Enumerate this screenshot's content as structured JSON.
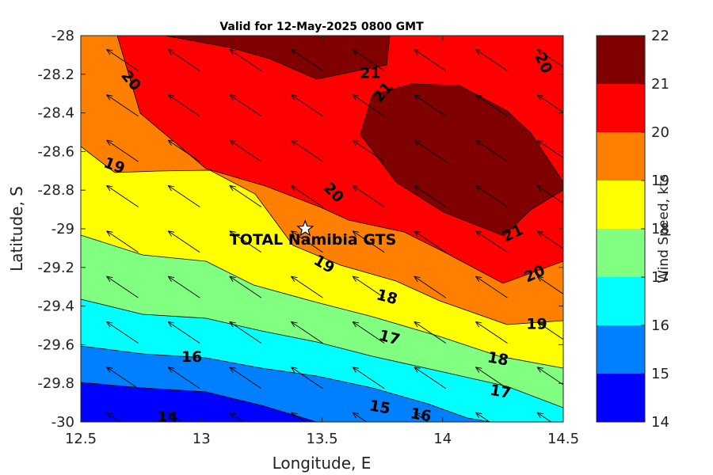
{
  "chart_data": {
    "type": "heatmap",
    "title": "Valid for 12-May-2025 0800 GMT",
    "xlabel": "Longitude, E",
    "ylabel": "Latitude, S",
    "xlim": [
      12.5,
      14.5
    ],
    "ylim": [
      -30,
      -28
    ],
    "xticks": [
      "12.5",
      "13",
      "13.5",
      "14",
      "14.5"
    ],
    "yticks": [
      "-28",
      "-28.2",
      "-28.4",
      "-28.6",
      "-28.8",
      "-29",
      "-29.2",
      "-29.4",
      "-29.6",
      "-29.8",
      "-30"
    ],
    "colorbar": {
      "label": "Wind Speed, kts",
      "ticks": [
        "22",
        "21",
        "20",
        "19",
        "18",
        "17",
        "16",
        "15",
        "14"
      ],
      "levels": [
        14,
        15,
        16,
        17,
        18,
        19,
        20,
        21,
        22
      ],
      "colors": [
        "#0000ff",
        "#0080ff",
        "#00ffff",
        "#80ff80",
        "#ffff00",
        "#ff8000",
        "#ff0000",
        "#800000"
      ]
    },
    "contour_labels": [
      {
        "text": "20",
        "x": 12.71,
        "y": -28.23,
        "angle": 50
      },
      {
        "text": "21",
        "x": 13.7,
        "y": -28.19,
        "angle": 0
      },
      {
        "text": "21",
        "x": 13.75,
        "y": -28.29,
        "angle": -50
      },
      {
        "text": "20",
        "x": 14.42,
        "y": -28.14,
        "angle": 65
      },
      {
        "text": "19",
        "x": 12.64,
        "y": -28.67,
        "angle": 20
      },
      {
        "text": "20",
        "x": 13.55,
        "y": -28.81,
        "angle": 45
      },
      {
        "text": "21",
        "x": 14.29,
        "y": -29.02,
        "angle": -25
      },
      {
        "text": "19",
        "x": 13.51,
        "y": -29.18,
        "angle": 30
      },
      {
        "text": "20",
        "x": 14.38,
        "y": -29.23,
        "angle": -25
      },
      {
        "text": "18",
        "x": 13.77,
        "y": -29.35,
        "angle": 15
      },
      {
        "text": "19",
        "x": 14.39,
        "y": -29.49,
        "angle": 0
      },
      {
        "text": "17",
        "x": 13.78,
        "y": -29.56,
        "angle": 15
      },
      {
        "text": "16",
        "x": 12.96,
        "y": -29.66,
        "angle": 0
      },
      {
        "text": "18",
        "x": 14.23,
        "y": -29.67,
        "angle": 10
      },
      {
        "text": "17",
        "x": 14.24,
        "y": -29.84,
        "angle": 10
      },
      {
        "text": "15",
        "x": 13.74,
        "y": -29.92,
        "angle": 10
      },
      {
        "text": "16",
        "x": 13.91,
        "y": -29.96,
        "angle": 10
      },
      {
        "text": "14",
        "x": 12.86,
        "y": -29.97,
        "angle": 0
      }
    ],
    "site": {
      "name": "TOTAL Namibia GTS",
      "lon": 13.43,
      "lat": -29.0
    },
    "wind_direction": "arrows pointing toward the northwest across the whole domain",
    "grid": false
  },
  "colors": {
    "band_14_15": "#0000ff",
    "band_15_16": "#0080ff",
    "band_16_17": "#00ffff",
    "band_17_18": "#80ff80",
    "band_18_19": "#ffff00",
    "band_19_20": "#ff8000",
    "band_20_21": "#ff0000",
    "band_21_22": "#800000"
  }
}
